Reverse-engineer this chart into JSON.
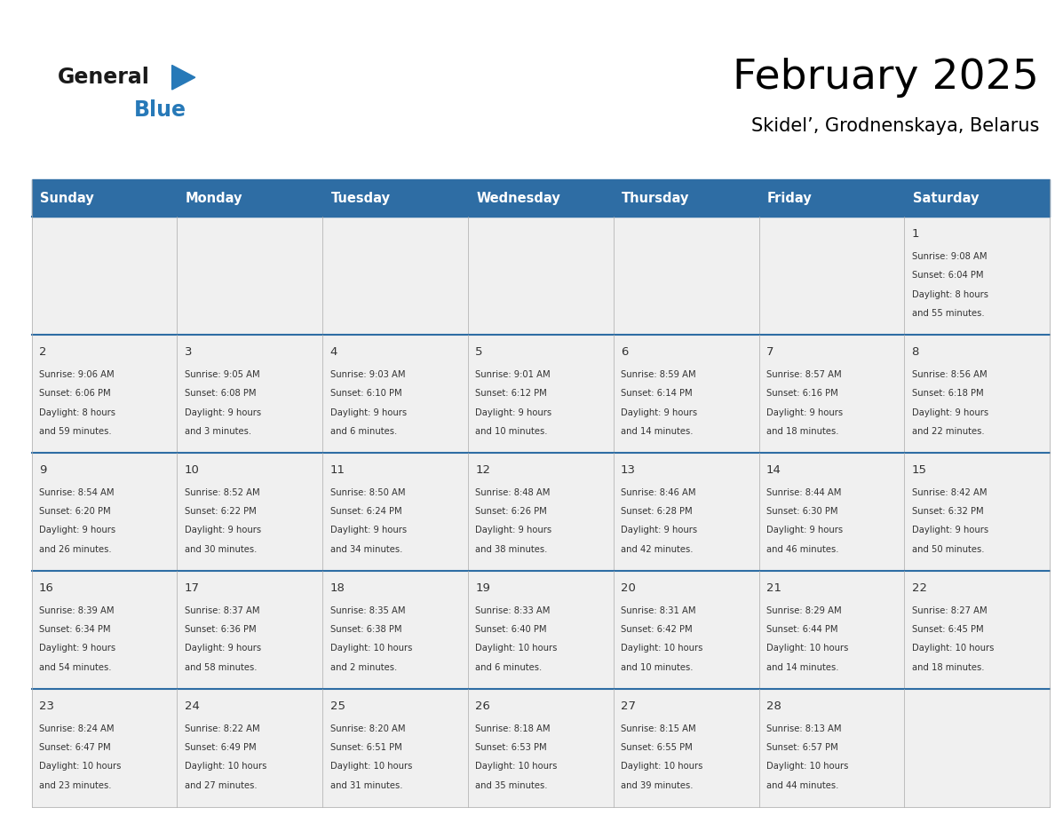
{
  "title": "February 2025",
  "subtitle": "Skidel’, Grodnenskaya, Belarus",
  "days_of_week": [
    "Sunday",
    "Monday",
    "Tuesday",
    "Wednesday",
    "Thursday",
    "Friday",
    "Saturday"
  ],
  "header_bg": "#2E6DA4",
  "header_text": "#FFFFFF",
  "cell_bg_light": "#F0F0F0",
  "border_color": "#2E6DA4",
  "cell_border_color": "#AAAAAA",
  "text_color": "#333333",
  "logo_general_color": "#1a1a1a",
  "logo_blue_color": "#2779B8",
  "weeks": [
    [
      null,
      null,
      null,
      null,
      null,
      null,
      {
        "day": 1,
        "sunrise": "9:08 AM",
        "sunset": "6:04 PM",
        "daylight": "8 hours and 55 minutes."
      }
    ],
    [
      {
        "day": 2,
        "sunrise": "9:06 AM",
        "sunset": "6:06 PM",
        "daylight": "8 hours and 59 minutes."
      },
      {
        "day": 3,
        "sunrise": "9:05 AM",
        "sunset": "6:08 PM",
        "daylight": "9 hours and 3 minutes."
      },
      {
        "day": 4,
        "sunrise": "9:03 AM",
        "sunset": "6:10 PM",
        "daylight": "9 hours and 6 minutes."
      },
      {
        "day": 5,
        "sunrise": "9:01 AM",
        "sunset": "6:12 PM",
        "daylight": "9 hours and 10 minutes."
      },
      {
        "day": 6,
        "sunrise": "8:59 AM",
        "sunset": "6:14 PM",
        "daylight": "9 hours and 14 minutes."
      },
      {
        "day": 7,
        "sunrise": "8:57 AM",
        "sunset": "6:16 PM",
        "daylight": "9 hours and 18 minutes."
      },
      {
        "day": 8,
        "sunrise": "8:56 AM",
        "sunset": "6:18 PM",
        "daylight": "9 hours and 22 minutes."
      }
    ],
    [
      {
        "day": 9,
        "sunrise": "8:54 AM",
        "sunset": "6:20 PM",
        "daylight": "9 hours and 26 minutes."
      },
      {
        "day": 10,
        "sunrise": "8:52 AM",
        "sunset": "6:22 PM",
        "daylight": "9 hours and 30 minutes."
      },
      {
        "day": 11,
        "sunrise": "8:50 AM",
        "sunset": "6:24 PM",
        "daylight": "9 hours and 34 minutes."
      },
      {
        "day": 12,
        "sunrise": "8:48 AM",
        "sunset": "6:26 PM",
        "daylight": "9 hours and 38 minutes."
      },
      {
        "day": 13,
        "sunrise": "8:46 AM",
        "sunset": "6:28 PM",
        "daylight": "9 hours and 42 minutes."
      },
      {
        "day": 14,
        "sunrise": "8:44 AM",
        "sunset": "6:30 PM",
        "daylight": "9 hours and 46 minutes."
      },
      {
        "day": 15,
        "sunrise": "8:42 AM",
        "sunset": "6:32 PM",
        "daylight": "9 hours and 50 minutes."
      }
    ],
    [
      {
        "day": 16,
        "sunrise": "8:39 AM",
        "sunset": "6:34 PM",
        "daylight": "9 hours and 54 minutes."
      },
      {
        "day": 17,
        "sunrise": "8:37 AM",
        "sunset": "6:36 PM",
        "daylight": "9 hours and 58 minutes."
      },
      {
        "day": 18,
        "sunrise": "8:35 AM",
        "sunset": "6:38 PM",
        "daylight": "10 hours and 2 minutes."
      },
      {
        "day": 19,
        "sunrise": "8:33 AM",
        "sunset": "6:40 PM",
        "daylight": "10 hours and 6 minutes."
      },
      {
        "day": 20,
        "sunrise": "8:31 AM",
        "sunset": "6:42 PM",
        "daylight": "10 hours and 10 minutes."
      },
      {
        "day": 21,
        "sunrise": "8:29 AM",
        "sunset": "6:44 PM",
        "daylight": "10 hours and 14 minutes."
      },
      {
        "day": 22,
        "sunrise": "8:27 AM",
        "sunset": "6:45 PM",
        "daylight": "10 hours and 18 minutes."
      }
    ],
    [
      {
        "day": 23,
        "sunrise": "8:24 AM",
        "sunset": "6:47 PM",
        "daylight": "10 hours and 23 minutes."
      },
      {
        "day": 24,
        "sunrise": "8:22 AM",
        "sunset": "6:49 PM",
        "daylight": "10 hours and 27 minutes."
      },
      {
        "day": 25,
        "sunrise": "8:20 AM",
        "sunset": "6:51 PM",
        "daylight": "10 hours and 31 minutes."
      },
      {
        "day": 26,
        "sunrise": "8:18 AM",
        "sunset": "6:53 PM",
        "daylight": "10 hours and 35 minutes."
      },
      {
        "day": 27,
        "sunrise": "8:15 AM",
        "sunset": "6:55 PM",
        "daylight": "10 hours and 39 minutes."
      },
      {
        "day": 28,
        "sunrise": "8:13 AM",
        "sunset": "6:57 PM",
        "daylight": "10 hours and 44 minutes."
      },
      null
    ]
  ]
}
